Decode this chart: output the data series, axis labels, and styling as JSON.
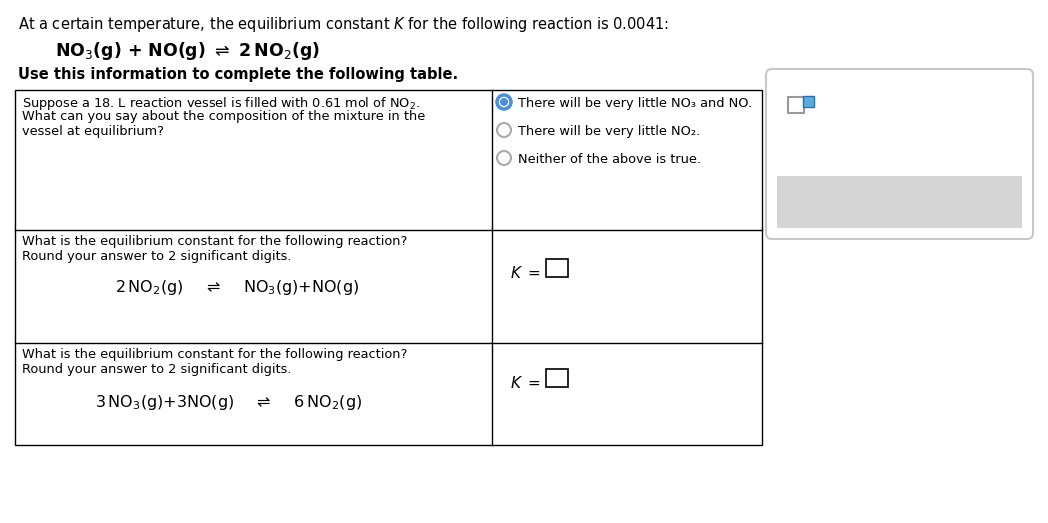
{
  "bg_color": "#ffffff",
  "header_text": "At a certain temperature, the equilibrium constant $K$ for the following reaction is 0.0041:",
  "row1_q_line1": "Suppose a 18. L reaction vessel is filled with 0.61 mol of NO$_2$.",
  "row1_q_line2": "What can you say about the composition of the mixture in the",
  "row1_q_line3": "vessel at equilibrium?",
  "row1_options": [
    "There will be very little NO₃ and NO.",
    "There will be very little NO₂.",
    "Neither of the above is true."
  ],
  "row1_selected": 0,
  "row2_left_line1": "What is the equilibrium constant for the following reaction?",
  "row2_left_line2": "Round your answer to 2 significant digits.",
  "row3_left_line1": "What is the equilibrium constant for the following reaction?",
  "row3_left_line2": "Round your answer to 2 significant digits.",
  "panel_border": "#c0c0c0",
  "radio_selected_color": "#4a90d9",
  "widget_bg": "#d8d8d8"
}
